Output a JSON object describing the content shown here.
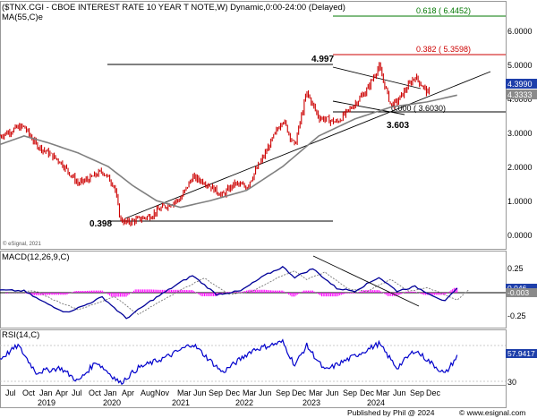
{
  "header": {
    "title": "($TNX.CGI - CBOE INTEREST RATE 10 YEAR T NOTE,W) Dynamic,0:00-24:00 (Delayed)",
    "ma_label": "MA(55,C)e"
  },
  "watermark": "© eSignal, 2021",
  "footer": {
    "published": "Published by Phil @ 2024",
    "brand": "© www.esignal.com"
  },
  "colors": {
    "price": "#cc0000",
    "ma": "#808080",
    "macd": "#000099",
    "signal": "#777777",
    "histogram": "#ff00ff",
    "rsi": "#0000cc",
    "fib_high": "#007700",
    "fib_mid": "#cc0000",
    "tag_blue": "#1e3faa",
    "tag_gray": "#8a8a8a"
  },
  "chart_data": [
    {
      "type": "line",
      "name": "price-panel",
      "title": "($TNX.CGI - CBOE INTEREST RATE 10 YEAR T NOTE,W) Dynamic,0:00-24:00 (Delayed)",
      "ylim": [
        -0.3,
        6.7
      ],
      "yticks": [
        "6.0000",
        "5.0000",
        "4.0000",
        "3.0000",
        "2.0000",
        "1.0000",
        "0.0000"
      ],
      "ytick_values": [
        6,
        5,
        4,
        3,
        2,
        1,
        0
      ],
      "x_month_labels": [
        "Jul",
        "Oct",
        "Jan",
        "Apr",
        "Jul",
        "Oct",
        "Jan",
        "Apr",
        "Aug",
        "Nov",
        "Mar",
        "Jun",
        "Sep",
        "Dec",
        "Mar",
        "Jun",
        "Sep",
        "Dec",
        "Mar",
        "Jun",
        "Sep",
        "Dec",
        "Mar",
        "Jun",
        "Sep",
        "Dec"
      ],
      "x_year_labels": [
        "2019",
        "2020",
        "2021",
        "2022",
        "2023",
        "2024"
      ],
      "price_keypoints": [
        [
          "2018-07",
          2.95
        ],
        [
          "2018-10",
          3.2
        ],
        [
          "2018-11",
          3.22
        ],
        [
          "2019-01",
          2.7
        ],
        [
          "2019-03",
          2.45
        ],
        [
          "2019-05",
          2.2
        ],
        [
          "2019-08",
          1.55
        ],
        [
          "2019-10",
          1.7
        ],
        [
          "2019-12",
          1.92
        ],
        [
          "2020-02",
          1.5
        ],
        [
          "2020-03",
          0.5
        ],
        [
          "2020-04",
          0.398
        ],
        [
          "2020-08",
          0.6
        ],
        [
          "2020-10",
          0.85
        ],
        [
          "2021-01",
          1.1
        ],
        [
          "2021-03",
          1.74
        ],
        [
          "2021-05",
          1.6
        ],
        [
          "2021-08",
          1.2
        ],
        [
          "2021-10",
          1.55
        ],
        [
          "2021-12",
          1.45
        ],
        [
          "2022-03",
          2.4
        ],
        [
          "2022-06",
          3.45
        ],
        [
          "2022-08",
          2.65
        ],
        [
          "2022-10",
          4.23
        ],
        [
          "2022-12",
          3.5
        ],
        [
          "2023-03",
          3.35
        ],
        [
          "2023-05",
          3.7
        ],
        [
          "2023-08",
          4.3
        ],
        [
          "2023-10",
          4.997
        ],
        [
          "2023-12",
          3.85
        ],
        [
          "2024-01",
          3.95
        ],
        [
          "2024-04",
          4.7
        ],
        [
          "2024-06",
          4.25
        ],
        [
          "2024-09",
          3.603
        ],
        [
          "2024-10",
          4.15
        ],
        [
          "2024-11",
          4.4
        ]
      ],
      "ma55": [
        [
          "2018-07",
          2.7
        ],
        [
          "2018-11",
          2.95
        ],
        [
          "2019-03",
          2.75
        ],
        [
          "2019-08",
          2.45
        ],
        [
          "2020-01",
          2.05
        ],
        [
          "2020-05",
          1.5
        ],
        [
          "2020-09",
          1.05
        ],
        [
          "2021-01",
          0.85
        ],
        [
          "2021-06",
          1.05
        ],
        [
          "2021-12",
          1.35
        ],
        [
          "2022-06",
          2.05
        ],
        [
          "2022-12",
          2.95
        ],
        [
          "2023-06",
          3.45
        ],
        [
          "2023-12",
          3.8
        ],
        [
          "2024-06",
          3.95
        ],
        [
          "2024-11",
          4.15
        ]
      ],
      "annotations": [
        {
          "label": "4.997",
          "value": 4.997
        },
        {
          "label": "0.398",
          "value": 0.398
        },
        {
          "label": "3.603",
          "value": 3.603
        },
        {
          "label": "0.618 ( 6.4452)",
          "value": 6.4452
        },
        {
          "label": "0.382 ( 5.3598)",
          "value": 5.3598
        },
        {
          "label": "0.000 ( 3.6030)",
          "value": 3.603
        }
      ],
      "last_values": [
        "4.3990",
        "4.3333"
      ]
    },
    {
      "type": "line",
      "name": "macd-panel",
      "title": "MACD(12,26,9,C)",
      "ylim": [
        -0.37,
        0.37
      ],
      "yticks": [
        "0.25",
        "-0.25"
      ],
      "ytick_values": [
        0.25,
        -0.25
      ],
      "macd_keypoints": [
        [
          "2018-07",
          0.03
        ],
        [
          "2018-11",
          0.02
        ],
        [
          "2019-02",
          -0.1
        ],
        [
          "2019-06",
          -0.23
        ],
        [
          "2019-09",
          -0.15
        ],
        [
          "2019-12",
          -0.05
        ],
        [
          "2020-04",
          -0.3
        ],
        [
          "2020-08",
          -0.1
        ],
        [
          "2021-01",
          0.12
        ],
        [
          "2021-03",
          0.2
        ],
        [
          "2021-07",
          -0.02
        ],
        [
          "2021-11",
          0.02
        ],
        [
          "2022-03",
          0.2
        ],
        [
          "2022-06",
          0.3
        ],
        [
          "2022-08",
          0.18
        ],
        [
          "2022-11",
          0.28
        ],
        [
          "2023-03",
          0.05
        ],
        [
          "2023-06",
          0.02
        ],
        [
          "2023-10",
          0.18
        ],
        [
          "2024-01",
          0.02
        ],
        [
          "2024-04",
          0.07
        ],
        [
          "2024-09",
          -0.1
        ],
        [
          "2024-11",
          0.046
        ]
      ],
      "last_values": [
        "0.046",
        "-0.003"
      ]
    },
    {
      "type": "line",
      "name": "rsi-panel",
      "title": "RSI(14,C)",
      "ylim": [
        20,
        90
      ],
      "yticks": [
        "30"
      ],
      "ytick_values": [
        30
      ],
      "rsi_keypoints": [
        [
          "2018-07",
          55
        ],
        [
          "2018-10",
          70
        ],
        [
          "2019-01",
          40
        ],
        [
          "2019-05",
          45
        ],
        [
          "2019-08",
          30
        ],
        [
          "2019-11",
          52
        ],
        [
          "2020-03",
          28
        ],
        [
          "2020-06",
          45
        ],
        [
          "2020-11",
          58
        ],
        [
          "2021-03",
          72
        ],
        [
          "2021-08",
          40
        ],
        [
          "2022-01",
          65
        ],
        [
          "2022-06",
          74
        ],
        [
          "2022-08",
          48
        ],
        [
          "2022-10",
          70
        ],
        [
          "2023-01",
          42
        ],
        [
          "2023-05",
          55
        ],
        [
          "2023-10",
          72
        ],
        [
          "2024-01",
          45
        ],
        [
          "2024-04",
          65
        ],
        [
          "2024-09",
          38
        ],
        [
          "2024-11",
          57.9417
        ]
      ],
      "last_values": [
        "57.9417"
      ]
    }
  ]
}
